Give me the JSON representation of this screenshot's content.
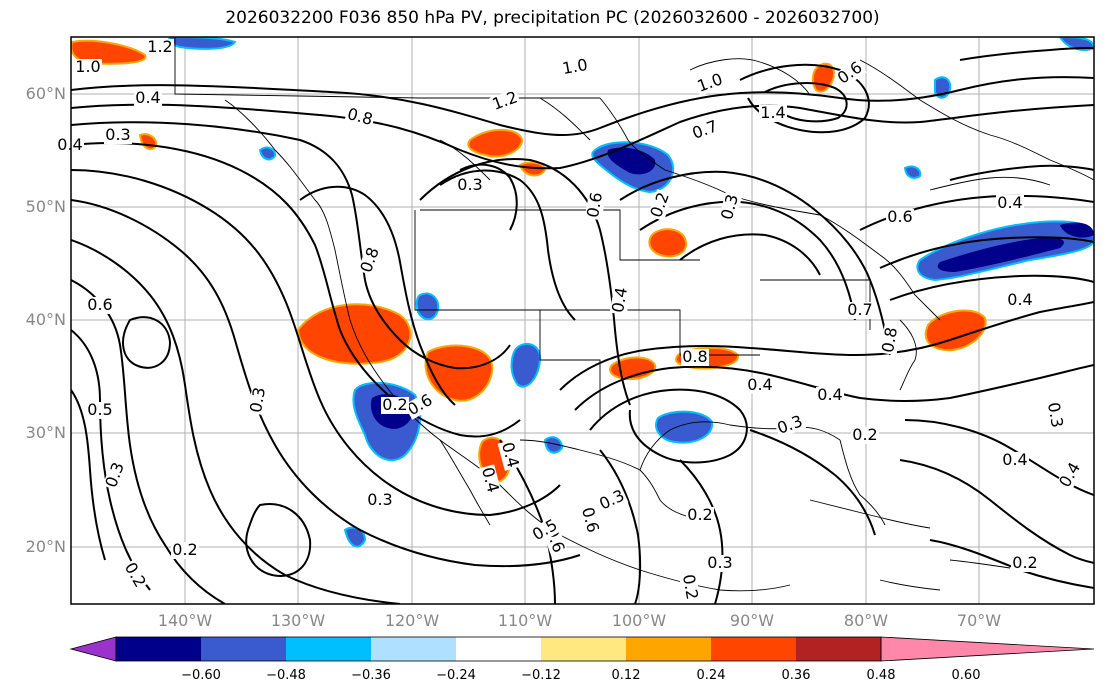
{
  "title": "2026032200 F036 850 hPa PV, precipitation PC (2026032600 - 2026032700)",
  "lat_labels": [
    "60°N",
    "50°N",
    "40°N",
    "30°N",
    "20°N"
  ],
  "lon_labels": [
    "140°W",
    "130°W",
    "120°W",
    "110°W",
    "100°W",
    "90°W",
    "80°W",
    "70°W"
  ],
  "colorbar": {
    "ticks": [
      "−0.60",
      "−0.48",
      "−0.36",
      "−0.24",
      "−0.12",
      "0.12",
      "0.24",
      "0.36",
      "0.48",
      "0.60"
    ],
    "colors": [
      "#9933cc",
      "#00008b",
      "#3a5bd0",
      "#00bfff",
      "#b0e0ff",
      "#ffffff",
      "#ffe880",
      "#ffa500",
      "#ff4500",
      "#b22222",
      "#ff88aa"
    ]
  },
  "contour_labels": [
    "1.2",
    "1.0",
    "0.4",
    "0.3",
    "0.4",
    "0.8",
    "1.0",
    "1.2",
    "1.4",
    "1.0",
    "0.6",
    "0.3",
    "0.8",
    "0.7",
    "0.6",
    "0.6",
    "0.2",
    "0.3",
    "0.4",
    "0.4",
    "0.6",
    "0.4",
    "0.3",
    "0.8",
    "0.8",
    "0.7",
    "0.6",
    "0.3",
    "0.5",
    "0.3",
    "0.2",
    "0.6",
    "0.6",
    "0.2",
    "0.4",
    "0.4",
    "0.5",
    "0.3",
    "0.2",
    "0.4",
    "0.3",
    "0.2",
    "0.4",
    "0.3",
    "0.4",
    "0.2",
    "0.3",
    "0.2",
    "0.2",
    "0.4"
  ]
}
